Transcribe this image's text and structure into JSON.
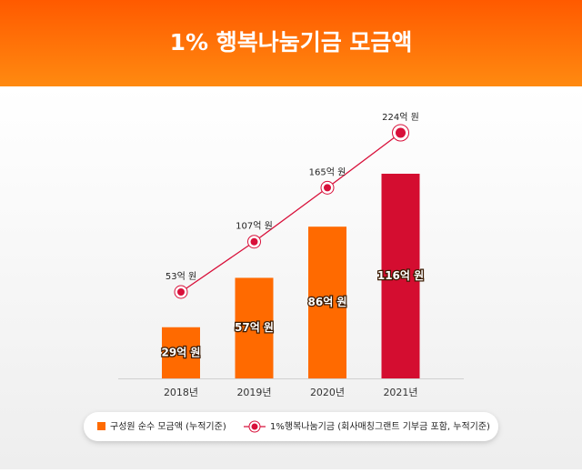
{
  "chart_data": {
    "type": "bar",
    "title": "1% 행복나눔기금 모금액",
    "categories": [
      "2018년",
      "2019년",
      "2020년",
      "2021년"
    ],
    "series": [
      {
        "name": "구성원 순수 모금액 (누적기준)",
        "type": "bar",
        "color": "#ff6a00",
        "colors": [
          "#ff6a00",
          "#ff6a00",
          "#ff6a00",
          "#d40d30"
        ],
        "values": [
          29,
          57,
          86,
          116
        ],
        "value_labels": [
          "29억 원",
          "57억 원",
          "86억 원",
          "116억 원"
        ]
      },
      {
        "name": "1%행복나눔기금 (회사매칭그랜트 기부금 포함, 누적기준)",
        "type": "line",
        "color": "#d8103a",
        "values": [
          53,
          107,
          165,
          224
        ],
        "value_labels": [
          "53억 원",
          "107억 원",
          "165억 원",
          "224억 원"
        ]
      }
    ]
  }
}
